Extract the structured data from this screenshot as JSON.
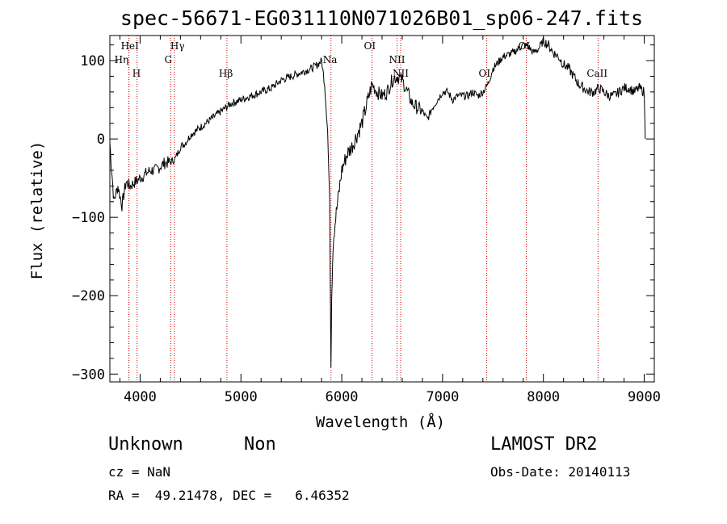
{
  "chart_data": {
    "type": "line",
    "title": "spec-56671-EG031110N071026B01_sp06-247.fits",
    "xlabel": "Wavelength (Å)",
    "ylabel": "Flux (relative)",
    "xlim": [
      3700,
      9100
    ],
    "ylim": [
      -310,
      132
    ],
    "xticks": [
      4000,
      5000,
      6000,
      7000,
      8000,
      9000
    ],
    "xtick_labels": [
      "4000",
      "5000",
      "6000",
      "7000",
      "8000",
      "9000"
    ],
    "yticks": [
      -300,
      -200,
      -100,
      0,
      100
    ],
    "ytick_labels": [
      "−300",
      "−200",
      "−100",
      "0",
      "100"
    ],
    "grid": false,
    "line_color": "#000000",
    "marker_color": "#cc0000",
    "series": [
      {
        "x": [
          3700,
          3740,
          3780,
          3820,
          3860,
          3900,
          3950,
          4000,
          4050,
          4100,
          4150,
          4200,
          4250,
          4300,
          4350,
          4400,
          4450,
          4500,
          4600,
          4700,
          4800,
          4900,
          5000,
          5100,
          5200,
          5300,
          5400,
          5500,
          5600,
          5700,
          5760,
          5800,
          5830,
          5860,
          5880,
          5893,
          5900,
          5915,
          5940,
          5970,
          6000,
          6050,
          6100,
          6150,
          6200,
          6250,
          6300,
          6350,
          6400,
          6450,
          6500,
          6550,
          6600,
          6650,
          6700,
          6750,
          6800,
          6850,
          6900,
          6950,
          7000,
          7050,
          7100,
          7150,
          7200,
          7250,
          7300,
          7350,
          7400,
          7450,
          7500,
          7600,
          7700,
          7750,
          7800,
          7850,
          7900,
          7950,
          8000,
          8050,
          8100,
          8150,
          8200,
          8250,
          8300,
          8350,
          8400,
          8450,
          8500,
          8550,
          8600,
          8650,
          8700,
          8750,
          8800,
          8850,
          8900,
          8950,
          9000,
          9010
        ],
        "y": [
          -5,
          -80,
          -60,
          -85,
          -55,
          -60,
          -55,
          -50,
          -45,
          -40,
          -40,
          -35,
          -30,
          -30,
          -25,
          -10,
          -5,
          5,
          15,
          25,
          35,
          45,
          50,
          55,
          60,
          65,
          75,
          80,
          85,
          90,
          95,
          100,
          70,
          10,
          -80,
          -290,
          -200,
          -130,
          -100,
          -70,
          -40,
          -20,
          -10,
          5,
          20,
          45,
          70,
          60,
          55,
          60,
          75,
          80,
          75,
          60,
          45,
          40,
          35,
          25,
          40,
          50,
          60,
          60,
          50,
          55,
          55,
          55,
          60,
          55,
          60,
          70,
          90,
          105,
          110,
          115,
          120,
          118,
          110,
          115,
          125,
          120,
          110,
          105,
          95,
          90,
          80,
          70,
          65,
          60,
          60,
          65,
          60,
          55,
          55,
          60,
          65,
          65,
          60,
          65,
          60,
          0
        ]
      }
    ],
    "line_markers": [
      {
        "x": 3889,
        "label": "HeI"
      },
      {
        "x": 3889,
        "label": "Hη"
      },
      {
        "x": 3970,
        "label": "H"
      },
      {
        "x": 4340,
        "label": "Hγ"
      },
      {
        "x": 4305,
        "label": "G"
      },
      {
        "x": 4861,
        "label": "Hβ"
      },
      {
        "x": 5893,
        "label": "Na"
      },
      {
        "x": 6300,
        "label": "OI"
      },
      {
        "x": 6548,
        "label": "NII"
      },
      {
        "x": 6584,
        "label": "NII"
      },
      {
        "x": 7438,
        "label": "OI"
      },
      {
        "x": 7830,
        "label": "OI"
      },
      {
        "x": 8542,
        "label": "CaII"
      }
    ]
  },
  "footer": {
    "class": "Unknown",
    "subclass": "Non",
    "survey": "LAMOST DR2",
    "cz": "cz = NaN",
    "obs_date": "Obs-Date: 20140113",
    "coords": "RA =  49.21478, DEC =   6.46352"
  }
}
